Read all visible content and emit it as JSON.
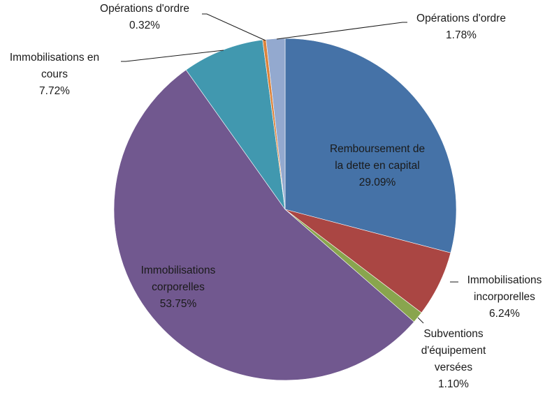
{
  "chart_data": {
    "type": "pie",
    "title": "",
    "slices": [
      {
        "name": "Remboursement de la dette en capital",
        "label_lines": [
          "Remboursement de",
          "la dette en capital"
        ],
        "value": 29.09,
        "value_label": "29.09%",
        "color": "#4572A7"
      },
      {
        "name": "Immobilisations incorporelles",
        "label_lines": [
          "Immobilisations",
          "incorporelles"
        ],
        "value": 6.24,
        "value_label": "6.24%",
        "color": "#AA4643"
      },
      {
        "name": "Subventions d'équipement versées",
        "label_lines": [
          "Subventions",
          "d'équipement",
          "versées"
        ],
        "value": 1.1,
        "value_label": "1.10%",
        "color": "#89A54E"
      },
      {
        "name": "Immobilisations corporelles",
        "label_lines": [
          "Immobilisations",
          "corporelles"
        ],
        "value": 53.75,
        "value_label": "53.75%",
        "color": "#71588F"
      },
      {
        "name": "Immobilisations en cours",
        "label_lines": [
          "Immobilisations en",
          "cours"
        ],
        "value": 7.72,
        "value_label": "7.72%",
        "color": "#4198AF"
      },
      {
        "name": "Opérations d'ordre",
        "label_lines": [
          "Opérations d'ordre"
        ],
        "value": 0.32,
        "value_label": "0.32%",
        "color": "#DB843D"
      },
      {
        "name": "Opérations d'ordre",
        "label_lines": [
          "Opérations d'ordre"
        ],
        "value": 1.78,
        "value_label": "1.78%",
        "color": "#93A9CF"
      }
    ],
    "legend": "none",
    "start_angle": "12 o'clock, clockwise"
  }
}
